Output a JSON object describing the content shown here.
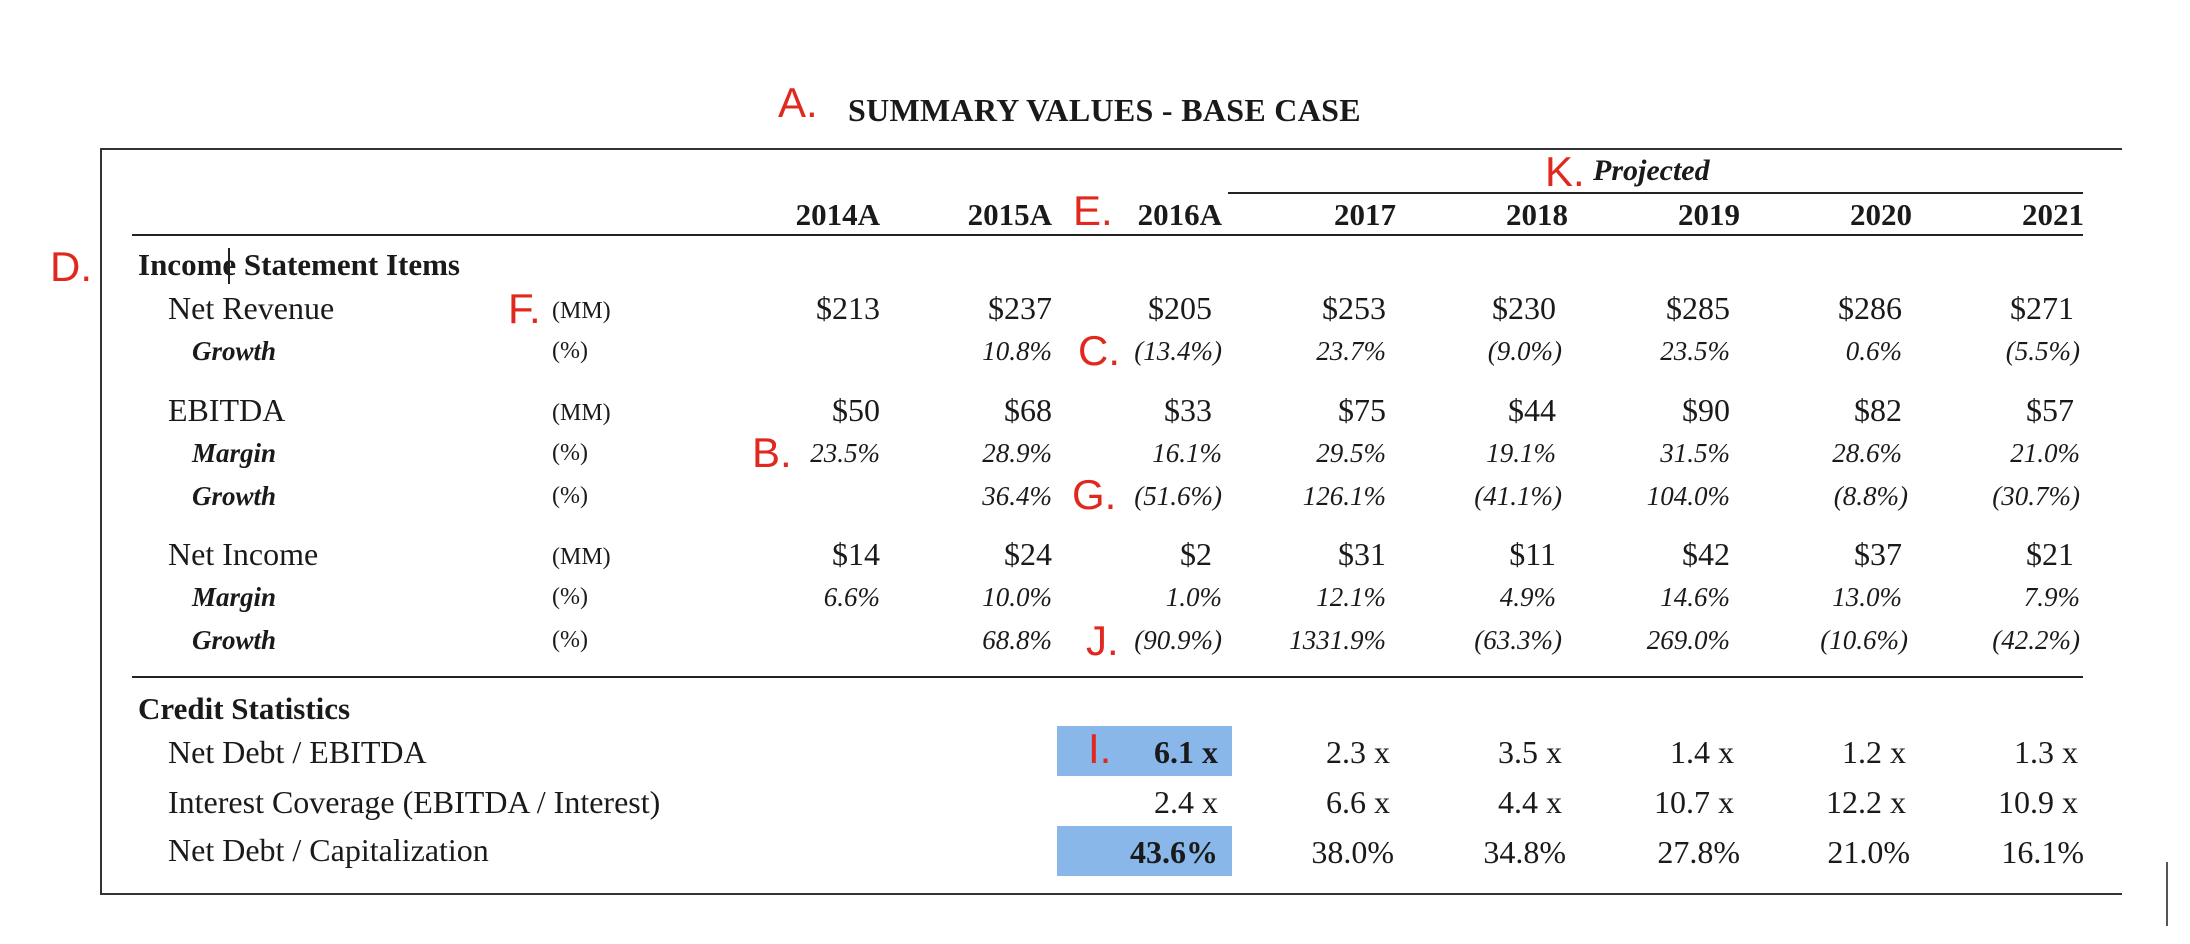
{
  "annotations": {
    "a": "A.",
    "b": "B.",
    "c": "C.",
    "d": "D.",
    "e": "E.",
    "f": "F.",
    "g": "G.",
    "i": "I.",
    "j": "J.",
    "k": "K."
  },
  "title": "SUMMARY VALUES - BASE CASE",
  "projected_label": "Projected",
  "years": [
    "2014A",
    "2015A",
    "2016A",
    "2017",
    "2018",
    "2019",
    "2020",
    "2021"
  ],
  "income": {
    "section": "Income Statement Items",
    "net_revenue": {
      "label": "Net Revenue",
      "unit": "(MM)",
      "values": [
        "$213",
        "$237",
        "$205",
        "$253",
        "$230",
        "$285",
        "$286",
        "$271"
      ]
    },
    "revenue_growth": {
      "label": "Growth",
      "unit": "(%)",
      "values": [
        "",
        "10.8%",
        "(13.4%)",
        "23.7%",
        "(9.0%)",
        "23.5%",
        "0.6%",
        "(5.5%)"
      ]
    },
    "ebitda": {
      "label": "EBITDA",
      "unit": "(MM)",
      "values": [
        "$50",
        "$68",
        "$33",
        "$75",
        "$44",
        "$90",
        "$82",
        "$57"
      ]
    },
    "ebitda_margin": {
      "label": "Margin",
      "unit": "(%)",
      "values": [
        "23.5%",
        "28.9%",
        "16.1%",
        "29.5%",
        "19.1%",
        "31.5%",
        "28.6%",
        "21.0%"
      ]
    },
    "ebitda_growth": {
      "label": "Growth",
      "unit": "(%)",
      "values": [
        "",
        "36.4%",
        "(51.6%)",
        "126.1%",
        "(41.1%)",
        "104.0%",
        "(8.8%)",
        "(30.7%)"
      ]
    },
    "net_income": {
      "label": "Net Income",
      "unit": "(MM)",
      "values": [
        "$14",
        "$24",
        "$2",
        "$31",
        "$11",
        "$42",
        "$37",
        "$21"
      ]
    },
    "ni_margin": {
      "label": "Margin",
      "unit": "(%)",
      "values": [
        "6.6%",
        "10.0%",
        "1.0%",
        "12.1%",
        "4.9%",
        "14.6%",
        "13.0%",
        "7.9%"
      ]
    },
    "ni_growth": {
      "label": "Growth",
      "unit": "(%)",
      "values": [
        "",
        "68.8%",
        "(90.9%)",
        "1331.9%",
        "(63.3%)",
        "269.0%",
        "(10.6%)",
        "(42.2%)"
      ]
    }
  },
  "credit": {
    "section": "Credit Statistics",
    "net_debt_ebitda": {
      "label": "Net Debt / EBITDA",
      "values": [
        "6.1 x",
        "2.3 x",
        "3.5 x",
        "1.4 x",
        "1.2 x",
        "1.3 x"
      ]
    },
    "interest_coverage": {
      "label": "Interest Coverage (EBITDA / Interest)",
      "values": [
        "2.4 x",
        "6.6 x",
        "4.4 x",
        "10.7 x",
        "12.2 x",
        "10.9 x"
      ]
    },
    "net_debt_cap": {
      "label": "Net Debt / Capitalization",
      "values": [
        "43.6%",
        "38.0%",
        "34.8%",
        "27.8%",
        "21.0%",
        "16.1%"
      ]
    }
  },
  "highlight_color": "#8ab7ea",
  "annotation_color": "#e0281e"
}
